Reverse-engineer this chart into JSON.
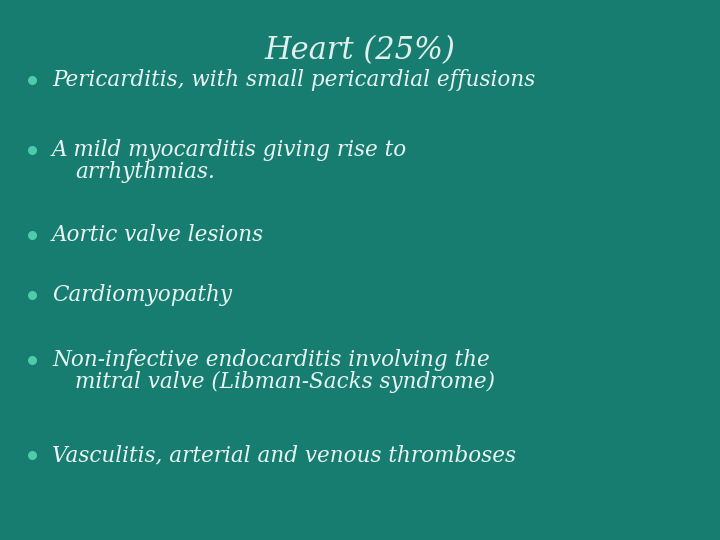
{
  "title": "Heart (25%)",
  "background_color": "#187d71",
  "title_color": "#dff0ed",
  "bullet_color": "#4ecba8",
  "text_color": "#e8f5f2",
  "title_fontsize": 22,
  "bullet_fontsize": 15.5,
  "bullet_points": [
    [
      "Pericarditis, with small pericardial effusions"
    ],
    [
      "A mild myocarditis giving rise to",
      "arrhythmias."
    ],
    [
      "Aortic valve lesions"
    ],
    [
      "Cardiomyopathy"
    ],
    [
      "Non-infective endocarditis involving the",
      "mitral valve (Libman-Sacks syndrome)"
    ],
    [
      "Vasculitis, arterial and venous thromboses"
    ]
  ],
  "figsize": [
    7.2,
    5.4
  ],
  "dpi": 100
}
